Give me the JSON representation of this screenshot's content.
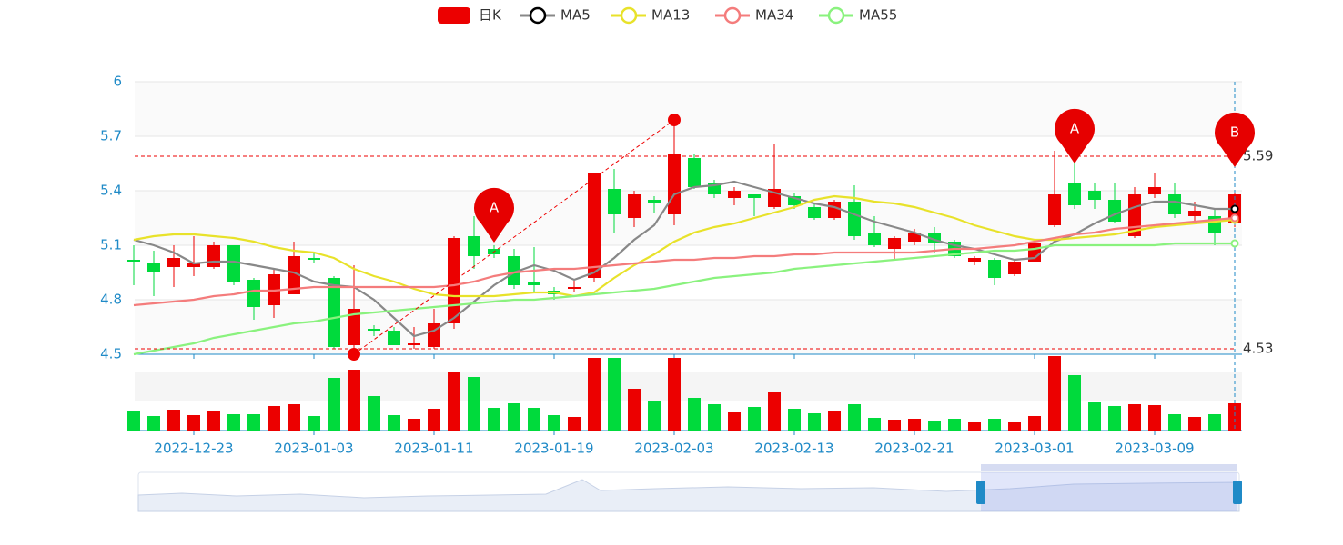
{
  "chart_data": {
    "type": "candlestick",
    "categories": [
      null,
      null,
      null,
      "2022-12-23",
      null,
      null,
      null,
      null,
      null,
      "2023-01-03",
      null,
      null,
      null,
      null,
      null,
      "2023-01-11",
      null,
      null,
      null,
      null,
      null,
      "2023-01-19",
      null,
      null,
      null,
      null,
      null,
      "2023-02-03",
      null,
      null,
      null,
      null,
      null,
      "2023-02-13",
      null,
      null,
      null,
      null,
      null,
      "2023-02-21",
      null,
      null,
      null,
      null,
      null,
      "2023-03-01",
      null,
      null,
      null,
      null,
      null,
      "2023-03-09",
      null,
      null,
      null,
      null
    ],
    "ylim": [
      4.5,
      6
    ],
    "yticks": [
      4.5,
      4.8,
      5.1,
      5.4,
      5.7,
      6
    ],
    "volume_ylim": [
      0,
      82
    ],
    "series": [
      {
        "name": "日K",
        "up_color": "#ec0000",
        "down_color": "#00da3c",
        "open": [
          5.02,
          5.0,
          4.98,
          4.98,
          4.98,
          5.1,
          4.91,
          4.77,
          4.83,
          5.03,
          4.92,
          4.55,
          4.64,
          4.63,
          4.55,
          4.54,
          4.67,
          5.15,
          5.08,
          5.04,
          4.9,
          4.85,
          4.86,
          4.92,
          5.41,
          5.25,
          5.35,
          5.27,
          5.58,
          5.44,
          5.36,
          5.38,
          5.31,
          5.37,
          5.31,
          5.25,
          5.34,
          5.17,
          5.08,
          5.12,
          5.17,
          5.12,
          5.01,
          5.02,
          4.94,
          5.01,
          5.21,
          5.44,
          5.4,
          5.35,
          5.15,
          5.38,
          5.38,
          5.26,
          5.26,
          5.22
        ],
        "close": [
          5.01,
          4.95,
          5.03,
          5.0,
          5.1,
          4.9,
          4.76,
          4.94,
          5.04,
          5.02,
          4.54,
          4.75,
          4.63,
          4.55,
          4.56,
          4.67,
          5.14,
          5.04,
          5.05,
          4.88,
          4.88,
          4.83,
          4.87,
          5.5,
          5.27,
          5.38,
          5.33,
          5.6,
          5.42,
          5.38,
          5.4,
          5.36,
          5.41,
          5.32,
          5.25,
          5.34,
          5.15,
          5.1,
          5.14,
          5.17,
          5.11,
          5.04,
          5.03,
          4.92,
          5.01,
          5.11,
          5.38,
          5.32,
          5.35,
          5.23,
          5.38,
          5.42,
          5.27,
          5.29,
          5.17,
          5.38
        ],
        "high": [
          5.1,
          5.07,
          5.1,
          5.15,
          5.12,
          5.1,
          4.92,
          4.97,
          5.12,
          5.06,
          4.93,
          4.99,
          4.66,
          4.65,
          4.65,
          4.75,
          5.15,
          5.26,
          5.1,
          5.08,
          5.09,
          4.87,
          4.91,
          5.5,
          5.52,
          5.4,
          5.37,
          5.76,
          5.6,
          5.46,
          5.42,
          5.38,
          5.66,
          5.39,
          5.33,
          5.35,
          5.43,
          5.26,
          5.15,
          5.19,
          5.2,
          5.13,
          5.04,
          5.03,
          5.02,
          5.13,
          5.62,
          5.56,
          5.44,
          5.44,
          5.42,
          5.5,
          5.44,
          5.34,
          5.3,
          5.4
        ],
        "low": [
          4.88,
          4.82,
          4.87,
          4.93,
          4.97,
          4.88,
          4.69,
          4.7,
          4.83,
          5.0,
          4.53,
          4.5,
          4.6,
          4.55,
          4.53,
          4.53,
          4.64,
          4.97,
          5.03,
          4.86,
          4.84,
          4.8,
          4.84,
          4.9,
          5.17,
          5.2,
          5.28,
          5.21,
          5.41,
          5.36,
          5.32,
          5.26,
          5.3,
          5.3,
          5.24,
          5.24,
          5.13,
          5.09,
          5.02,
          5.1,
          5.06,
          5.03,
          4.99,
          4.88,
          4.93,
          5.01,
          5.2,
          5.3,
          5.3,
          5.22,
          5.14,
          5.36,
          5.25,
          5.22,
          5.1,
          5.2
        ],
        "volume": [
          21,
          16,
          23,
          17,
          21,
          18,
          18,
          27,
          29,
          16,
          58,
          67,
          38,
          17,
          13,
          24,
          65,
          59,
          25,
          30,
          25,
          17,
          15,
          80,
          80,
          46,
          33,
          80,
          36,
          29,
          20,
          26,
          42,
          24,
          19,
          22,
          29,
          14,
          12,
          13,
          10,
          13,
          9,
          13,
          9,
          16,
          82,
          61,
          31,
          27,
          29,
          28,
          18,
          15,
          18,
          30
        ]
      },
      {
        "name": "MA5",
        "color": "#888888",
        "values": [
          5.13,
          5.1,
          5.06,
          5.0,
          5.01,
          5.01,
          4.99,
          4.97,
          4.95,
          4.9,
          4.88,
          4.87,
          4.8,
          4.7,
          4.6,
          4.63,
          4.7,
          4.79,
          4.88,
          4.95,
          4.99,
          4.96,
          4.91,
          4.95,
          5.03,
          5.13,
          5.21,
          5.38,
          5.42,
          5.43,
          5.45,
          5.42,
          5.39,
          5.36,
          5.33,
          5.31,
          5.27,
          5.23,
          5.2,
          5.17,
          5.13,
          5.1,
          5.08,
          5.05,
          5.02,
          5.03,
          5.12,
          5.16,
          5.22,
          5.27,
          5.31,
          5.34,
          5.34,
          5.32,
          5.3,
          5.3
        ]
      },
      {
        "name": "MA13",
        "color": "#e8e22a",
        "values": [
          5.13,
          5.15,
          5.16,
          5.16,
          5.15,
          5.14,
          5.12,
          5.09,
          5.07,
          5.06,
          5.03,
          4.97,
          4.93,
          4.9,
          4.86,
          4.83,
          4.82,
          4.82,
          4.82,
          4.83,
          4.84,
          4.84,
          4.82,
          4.84,
          4.92,
          4.99,
          5.05,
          5.12,
          5.17,
          5.2,
          5.22,
          5.25,
          5.28,
          5.31,
          5.35,
          5.37,
          5.36,
          5.34,
          5.33,
          5.31,
          5.28,
          5.25,
          5.21,
          5.18,
          5.15,
          5.13,
          5.13,
          5.14,
          5.15,
          5.16,
          5.18,
          5.2,
          5.21,
          5.22,
          5.23,
          5.24
        ]
      },
      {
        "name": "MA34",
        "color": "#f47c7c",
        "values": [
          4.77,
          4.78,
          4.79,
          4.8,
          4.82,
          4.83,
          4.85,
          4.85,
          4.86,
          4.87,
          4.87,
          4.87,
          4.87,
          4.87,
          4.87,
          4.87,
          4.88,
          4.9,
          4.93,
          4.95,
          4.96,
          4.97,
          4.97,
          4.98,
          4.99,
          5.0,
          5.01,
          5.02,
          5.02,
          5.03,
          5.03,
          5.04,
          5.04,
          5.05,
          5.05,
          5.06,
          5.06,
          5.06,
          5.06,
          5.06,
          5.07,
          5.08,
          5.08,
          5.09,
          5.1,
          5.12,
          5.14,
          5.16,
          5.17,
          5.19,
          5.2,
          5.21,
          5.22,
          5.23,
          5.24,
          5.25
        ]
      },
      {
        "name": "MA55",
        "color": "#8af27e",
        "values": [
          4.5,
          4.52,
          4.54,
          4.56,
          4.59,
          4.61,
          4.63,
          4.65,
          4.67,
          4.68,
          4.7,
          4.72,
          4.73,
          4.74,
          4.75,
          4.76,
          4.77,
          4.78,
          4.79,
          4.8,
          4.8,
          4.81,
          4.82,
          4.83,
          4.84,
          4.85,
          4.86,
          4.88,
          4.9,
          4.92,
          4.93,
          4.94,
          4.95,
          4.97,
          4.98,
          4.99,
          5.0,
          5.01,
          5.02,
          5.03,
          5.04,
          5.05,
          5.06,
          5.07,
          5.07,
          5.08,
          5.1,
          5.1,
          5.1,
          5.1,
          5.1,
          5.1,
          5.11,
          5.11,
          5.11,
          5.11
        ]
      }
    ],
    "mark_lines": [
      5.59,
      4.53
    ],
    "mark_points": [
      {
        "label": "A",
        "at": 18,
        "value": 5.115
      },
      {
        "label": "A",
        "at": 47,
        "value": 5.55
      },
      {
        "label": "B",
        "at": 55,
        "value": 5.53
      }
    ],
    "trend_line": [
      [
        11,
        4.5
      ],
      [
        27,
        5.79
      ]
    ]
  }
}
